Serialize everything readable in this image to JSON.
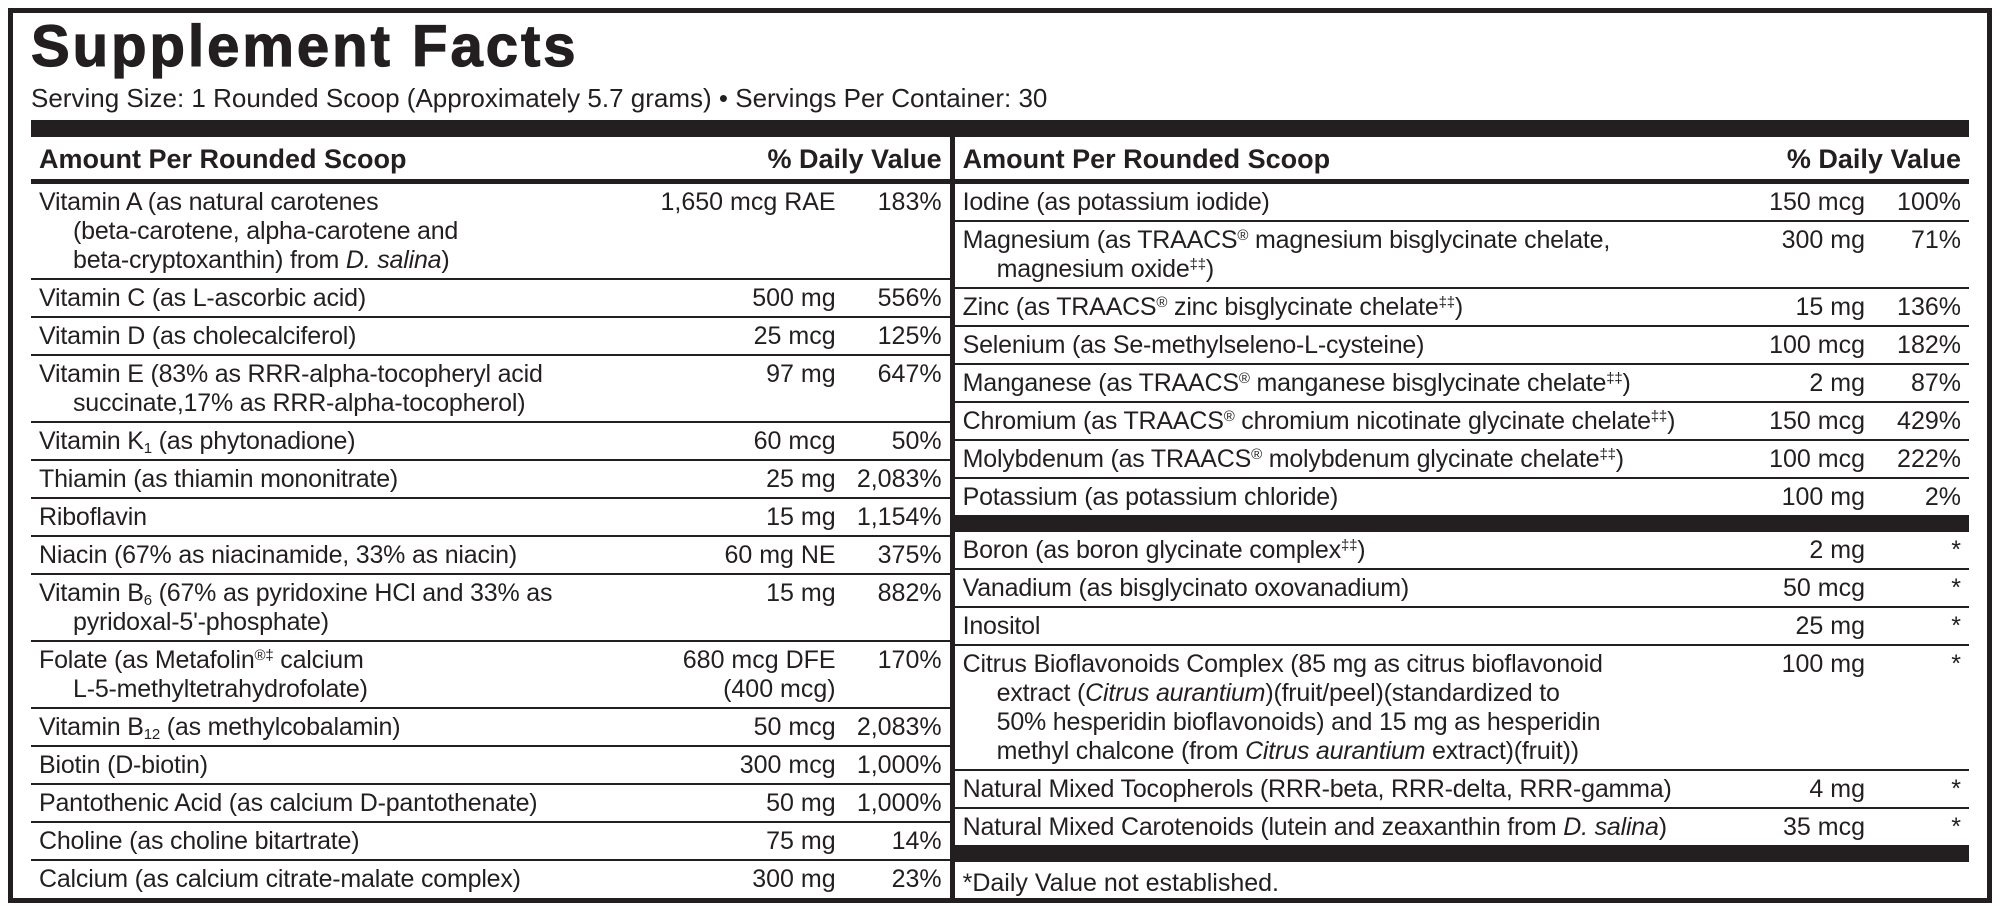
{
  "colors": {
    "text": "#231f20",
    "rule": "#231f20",
    "background": "#ffffff"
  },
  "title": "Supplement Facts",
  "serving_line": "Serving Size: 1 Rounded Scoop (Approximately 5.7 grams) • Servings Per Container: 30",
  "columns": {
    "left": {
      "header": {
        "amount_label": "Amount Per Rounded Scoop",
        "dv_label": "% Daily Value"
      },
      "rows": [
        {
          "type": "item",
          "name": "Vitamin A (as natural carotenes\n(beta-carotene, alpha-carotene and\nbeta-cryptoxanthin) from *D. salina*)",
          "amount": "1,650 mcg RAE",
          "dv": "183%"
        },
        {
          "type": "item",
          "name": "Vitamin C (as L-ascorbic acid)",
          "amount": "500 mg",
          "dv": "556%"
        },
        {
          "type": "item",
          "name": "Vitamin D (as cholecalciferol)",
          "amount": "25 mcg",
          "dv": "125%"
        },
        {
          "type": "item",
          "name": "Vitamin E (83% as RRR-alpha-tocopheryl acid\nsuccinate,17% as RRR-alpha-tocopherol)",
          "amount": "97 mg",
          "dv": "647%"
        },
        {
          "type": "item",
          "name": "Vitamin K~1~ (as phytonadione)",
          "amount": "60 mcg",
          "dv": "50%"
        },
        {
          "type": "item",
          "name": "Thiamin (as thiamin mononitrate)",
          "amount": "25 mg",
          "dv": "2,083%"
        },
        {
          "type": "item",
          "name": "Riboflavin",
          "amount": "15 mg",
          "dv": "1,154%"
        },
        {
          "type": "item",
          "name": "Niacin (67% as niacinamide, 33% as niacin)",
          "amount": "60 mg NE",
          "dv": "375%"
        },
        {
          "type": "item",
          "name": "Vitamin B~6~ (67% as pyridoxine HCl and 33% as\npyridoxal-5'-phosphate)",
          "amount": "15 mg",
          "dv": "882%"
        },
        {
          "type": "item",
          "name": "Folate (as Metafolin^®‡^ calcium\nL-5-methyltetrahydrofolate)",
          "amount": "680 mcg DFE\n(400 mcg)",
          "dv": "170%"
        },
        {
          "type": "item",
          "name": "Vitamin B~12~ (as methylcobalamin)",
          "amount": "50 mcg",
          "dv": "2,083%"
        },
        {
          "type": "item",
          "name": "Biotin (D-biotin)",
          "amount": "300 mcg",
          "dv": "1,000%"
        },
        {
          "type": "item",
          "name": "Pantothenic Acid (as calcium D-pantothenate)",
          "amount": "50 mg",
          "dv": "1,000%"
        },
        {
          "type": "item",
          "name": "Choline (as choline bitartrate)",
          "amount": "75 mg",
          "dv": "14%"
        },
        {
          "type": "item",
          "name": "Calcium (as calcium citrate-malate complex)",
          "amount": "300 mg",
          "dv": "23%"
        }
      ]
    },
    "right": {
      "header": {
        "amount_label": "Amount Per Rounded Scoop",
        "dv_label": "% Daily Value"
      },
      "rows": [
        {
          "type": "item",
          "name": "Iodine (as potassium iodide)",
          "amount": "150 mcg",
          "dv": "100%"
        },
        {
          "type": "item",
          "name": "Magnesium (as TRAACS^®^ magnesium bisglycinate chelate,\nmagnesium oxide^‡‡^)",
          "amount": "300 mg",
          "dv": "71%"
        },
        {
          "type": "item",
          "name": "Zinc (as TRAACS^®^ zinc bisglycinate chelate^‡‡^)",
          "amount": "15 mg",
          "dv": "136%"
        },
        {
          "type": "item",
          "name": "Selenium (as Se-methylseleno-L-cysteine)",
          "amount": "100 mcg",
          "dv": "182%"
        },
        {
          "type": "item",
          "name": "Manganese (as TRAACS^®^ manganese bisglycinate chelate^‡‡^)",
          "amount": "2 mg",
          "dv": "87%"
        },
        {
          "type": "item",
          "name": "Chromium (as TRAACS^®^ chromium nicotinate glycinate chelate^‡‡^)",
          "amount": "150 mcg",
          "dv": "429%"
        },
        {
          "type": "item",
          "name": "Molybdenum (as TRAACS^®^ molybdenum glycinate chelate^‡‡^)",
          "amount": "100 mcg",
          "dv": "222%"
        },
        {
          "type": "item",
          "name": "Potassium (as potassium chloride)",
          "amount": "100 mg",
          "dv": "2%"
        },
        {
          "type": "divider"
        },
        {
          "type": "item",
          "name": "Boron (as boron glycinate complex^‡‡^)",
          "amount": "2 mg",
          "dv": "*"
        },
        {
          "type": "item",
          "name": "Vanadium (as bisglycinato oxovanadium)",
          "amount": "50 mcg",
          "dv": "*"
        },
        {
          "type": "item",
          "name": "Inositol",
          "amount": "25 mg",
          "dv": "*"
        },
        {
          "type": "item",
          "name": "Citrus Bioflavonoids Complex (85 mg as citrus bioflavonoid\nextract (*Citrus aurantium*)(fruit/peel)(standardized to\n50% hesperidin bioflavonoids) and 15 mg as hesperidin\nmethyl chalcone (from *Citrus aurantium* extract)(fruit))",
          "amount": "100 mg",
          "dv": "*"
        },
        {
          "type": "item",
          "name": "Natural Mixed Tocopherols (RRR-beta, RRR-delta, RRR-gamma)",
          "amount": "4 mg",
          "dv": "*"
        },
        {
          "type": "item",
          "name": "Natural Mixed Carotenoids (lutein and zeaxanthin from *D. salina*)",
          "amount": "35 mcg",
          "dv": "*"
        },
        {
          "type": "divider"
        },
        {
          "type": "footnote",
          "text": "*Daily Value not established."
        }
      ]
    }
  }
}
